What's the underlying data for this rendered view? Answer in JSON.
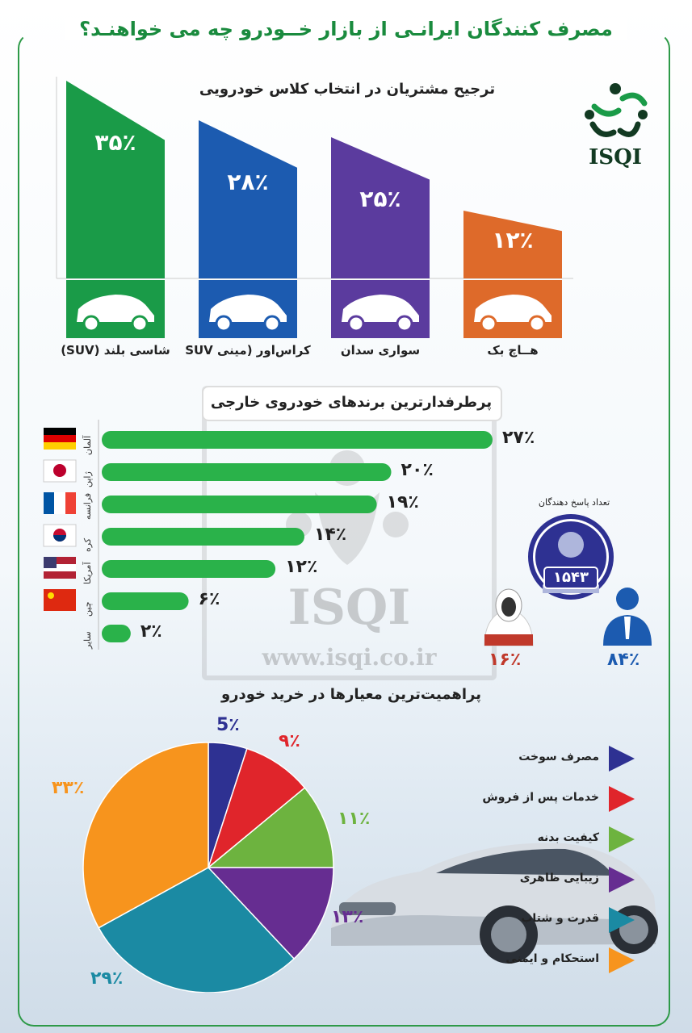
{
  "title": "مصرف کنندگان ایرانـی از بازار خــودرو چه می خواهنـد؟",
  "logo": {
    "text": "ISQI"
  },
  "watermark": {
    "text": "ISQI",
    "url": "www.isqi.co.ir"
  },
  "colors": {
    "green": "#1a9b48",
    "blue": "#1c5bb0",
    "purple": "#5b3b9e",
    "orange": "#de6a2a"
  },
  "chart_data": [
    {
      "type": "bar",
      "title": "ترجیح مشتریان در انتخاب کلاس خودرویی",
      "categories": [
        "شاسی بلند (SUV)",
        "کراس‌اور (مینی SUV",
        "سواری سدان",
        "هــاچ بک"
      ],
      "values": [
        35,
        28,
        25,
        12
      ],
      "value_labels": [
        "۳۵٪",
        "۲۸٪",
        "۲۵٪",
        "۱۲٪"
      ],
      "colors": [
        "#1a9b48",
        "#1c5bb0",
        "#5b3b9e",
        "#de6a2a"
      ],
      "ylim": [
        0,
        35
      ]
    },
    {
      "type": "bar",
      "orientation": "horizontal",
      "title": "پرطرفدارترین برندهای خودروی خارجی",
      "categories": [
        "آلمان",
        "ژاپن",
        "فرانسه",
        "کره",
        "آمریکا",
        "چین",
        "سایر"
      ],
      "values": [
        27,
        20,
        19,
        14,
        12,
        6,
        2
      ],
      "value_labels": [
        "۲۷٪",
        "۲۰٪",
        "۱۹٪",
        "۱۴٪",
        "۱۲٪",
        "۶٪",
        "۲٪"
      ],
      "color": "#2ab24a",
      "xlim": [
        0,
        27
      ]
    },
    {
      "type": "pie",
      "title": "پراهمیت‌ترین معیارها در خرید خودرو",
      "categories": [
        "مصرف سوخت",
        "خدمات پس از فروش",
        "کیفیت بدنه",
        "زیبایی ظاهری",
        "قدرت و شتاب",
        "استحکام و ایمنی"
      ],
      "values": [
        5,
        9,
        11,
        13,
        29,
        33
      ],
      "value_labels": [
        "5٪",
        "۹٪",
        "۱۱٪",
        "۱۳٪",
        "۲۹٪",
        "۳۳٪"
      ],
      "colors": [
        "#2e3192",
        "#e0252b",
        "#6db33f",
        "#662d91",
        "#1b8aa3",
        "#f7941d"
      ]
    }
  ],
  "respondents": {
    "label": "تعداد پاسخ دهندگان",
    "count": "۱۵۴۳",
    "female_pct": "۱۶٪",
    "male_pct": "۸۴٪",
    "female_share": 16,
    "male_share": 84
  }
}
